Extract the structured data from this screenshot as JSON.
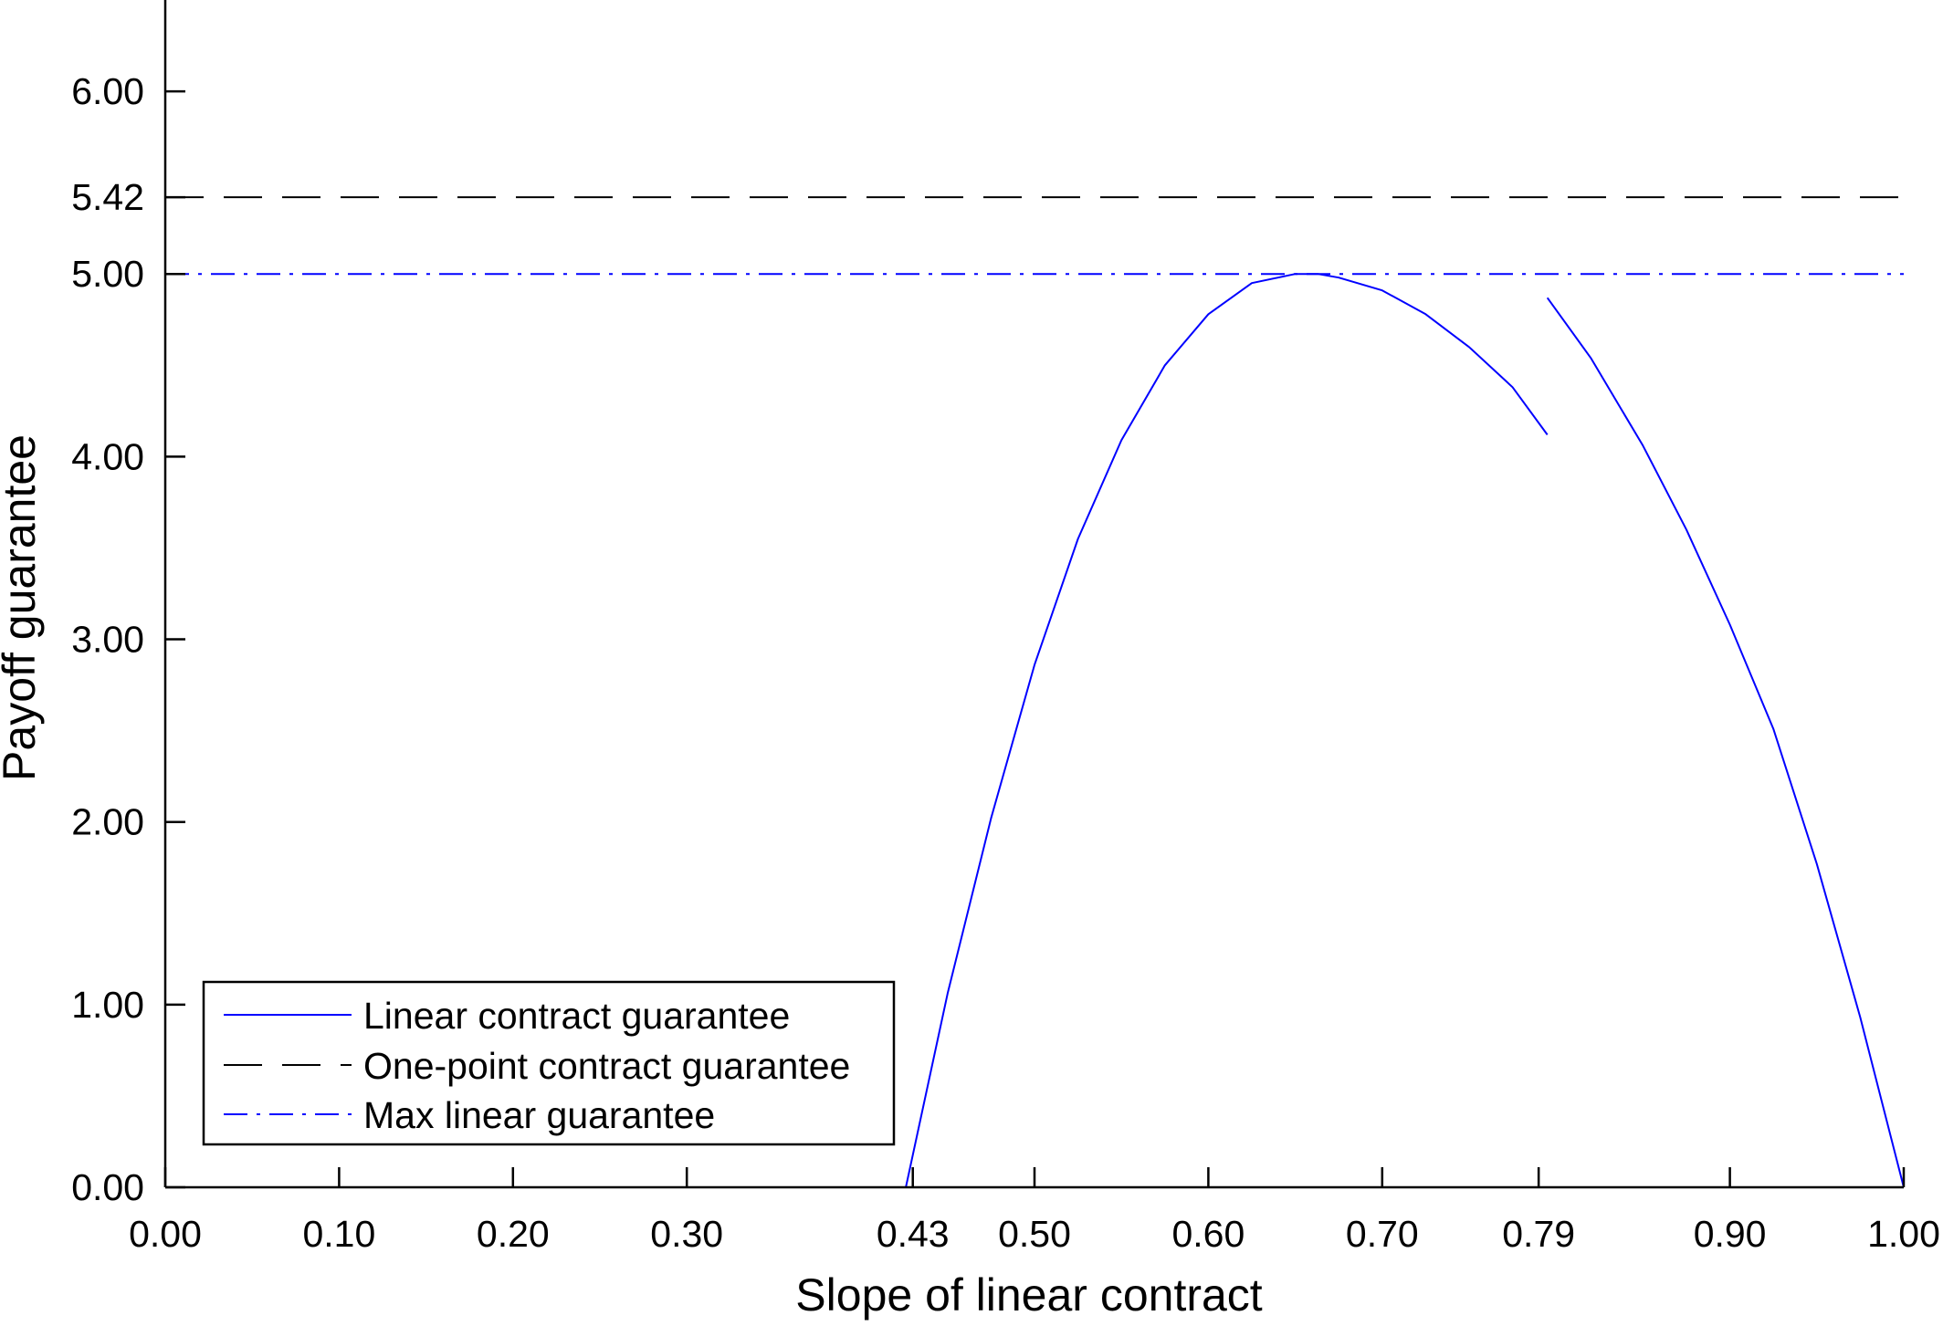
{
  "chart_data": {
    "type": "line",
    "title": "",
    "xlabel": "Slope of linear contract",
    "ylabel": "Payoff guarantee",
    "xlim": [
      0,
      1
    ],
    "ylim": [
      0,
      6.5
    ],
    "x_ticks": [
      0.0,
      0.1,
      0.2,
      0.3,
      0.43,
      0.5,
      0.6,
      0.7,
      0.79,
      0.9,
      1.0
    ],
    "x_tick_labels": [
      "0.00",
      "0.10",
      "0.20",
      "0.30",
      "0.43",
      "0.50",
      "0.60",
      "0.70",
      "0.79",
      "0.90",
      "1.00"
    ],
    "y_ticks": [
      0.0,
      1.0,
      2.0,
      3.0,
      4.0,
      5.0,
      5.42,
      6.0
    ],
    "y_tick_labels": [
      "0.00",
      "1.00",
      "2.00",
      "3.00",
      "4.00",
      "5.00",
      "5.42",
      "6.00"
    ],
    "grid": false,
    "legend_position": "bottom-left",
    "series": [
      {
        "name": "Linear contract guarantee",
        "color": "#0000ff",
        "style": "solid",
        "segments": [
          {
            "x": [
              0.426,
              0.45,
              0.475,
              0.5,
              0.525,
              0.55,
              0.575,
              0.6,
              0.625,
              0.65,
              0.663,
              0.675,
              0.7,
              0.725,
              0.75,
              0.775,
              0.795
            ],
            "y": [
              0.0,
              1.06,
              2.02,
              2.86,
              3.55,
              4.09,
              4.5,
              4.78,
              4.95,
              5.0,
              5.0,
              4.98,
              4.91,
              4.78,
              4.6,
              4.38,
              4.12
            ]
          },
          {
            "x": [
              0.795,
              0.82,
              0.85,
              0.875,
              0.9,
              0.925,
              0.95,
              0.975,
              1.0
            ],
            "y": [
              4.87,
              4.54,
              4.06,
              3.6,
              3.08,
              2.51,
              1.77,
              0.93,
              0.0
            ]
          }
        ]
      },
      {
        "name": "One-point contract guarantee",
        "color": "#000000",
        "style": "dashed",
        "constant": 5.42
      },
      {
        "name": "Max linear guarantee",
        "color": "#0000ff",
        "style": "dashdot",
        "constant": 5.0
      }
    ]
  }
}
